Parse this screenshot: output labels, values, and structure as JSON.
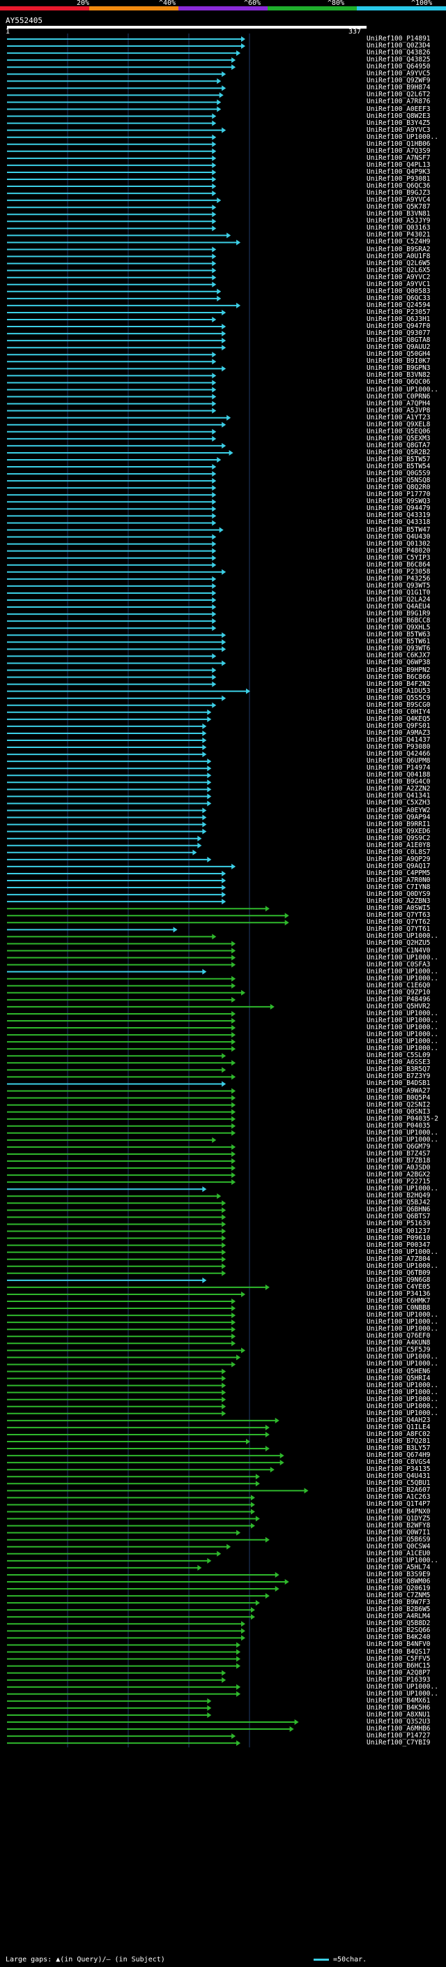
{
  "scale": {
    "labels": [
      "20%",
      "^40%",
      "^60%",
      "^80%",
      "^100%"
    ],
    "colors": [
      "#e8192c",
      "#f08a10",
      "#8a2bd8",
      "#1fae2c",
      "#28c8e8"
    ]
  },
  "query": {
    "name": "AY552405",
    "start": "1",
    "end": "337"
  },
  "legend": {
    "gaps": "Large gaps: ▲(in Query)/— (in Subject)",
    "scale": "=50char."
  },
  "colors": {
    "cyan": "#3ccfe6",
    "green": "#2fb82c",
    "grid": "#1f3a6a"
  },
  "hits": [
    {
      "id": "UniRef100_P14891",
      "end": 0.98,
      "c": "c"
    },
    {
      "id": "UniRef100_Q0Z3D4",
      "end": 0.98,
      "c": "c"
    },
    {
      "id": "UniRef100_Q43826",
      "end": 0.96,
      "c": "c"
    },
    {
      "id": "UniRef100_Q43825",
      "end": 0.94,
      "c": "c"
    },
    {
      "id": "UniRef100_Q64950",
      "end": 0.94,
      "c": "c"
    },
    {
      "id": "UniRef100_A9YVC5",
      "end": 0.9,
      "c": "c"
    },
    {
      "id": "UniRef100_Q9ZWF9",
      "end": 0.88,
      "c": "c"
    },
    {
      "id": "UniRef100_B9H874",
      "end": 0.9,
      "c": "c"
    },
    {
      "id": "UniRef100_Q2L6T2",
      "end": 0.89,
      "c": "c"
    },
    {
      "id": "UniRef100_A7R876",
      "end": 0.88,
      "c": "c"
    },
    {
      "id": "UniRef100_A0EEF3",
      "end": 0.88,
      "c": "c"
    },
    {
      "id": "UniRef100_Q8W2E3",
      "end": 0.86,
      "c": "c"
    },
    {
      "id": "UniRef100_B3Y4Z5",
      "end": 0.86,
      "c": "c"
    },
    {
      "id": "UniRef100_A9YVC3",
      "end": 0.9,
      "c": "c"
    },
    {
      "id": "UniRef100_UP1000..",
      "end": 0.86,
      "c": "c"
    },
    {
      "id": "UniRef100_Q1HB06",
      "end": 0.86,
      "c": "c"
    },
    {
      "id": "UniRef100_A7Q3S9",
      "end": 0.86,
      "c": "c"
    },
    {
      "id": "UniRef100_A7NSF7",
      "end": 0.86,
      "c": "c"
    },
    {
      "id": "UniRef100_Q4PL13",
      "end": 0.86,
      "c": "c"
    },
    {
      "id": "UniRef100_Q4P9K3",
      "end": 0.86,
      "c": "c"
    },
    {
      "id": "UniRef100_P93081",
      "end": 0.86,
      "c": "c"
    },
    {
      "id": "UniRef100_Q6QC36",
      "end": 0.86,
      "c": "c"
    },
    {
      "id": "UniRef100_B9GJZ3",
      "end": 0.86,
      "c": "c"
    },
    {
      "id": "UniRef100_A9YVC4",
      "end": 0.88,
      "c": "c"
    },
    {
      "id": "UniRef100_Q5K787",
      "end": 0.86,
      "c": "c"
    },
    {
      "id": "UniRef100_B3VN81",
      "end": 0.86,
      "c": "c"
    },
    {
      "id": "UniRef100_A5JJY9",
      "end": 0.86,
      "c": "c"
    },
    {
      "id": "UniRef100_Q03163",
      "end": 0.86,
      "c": "c"
    },
    {
      "id": "UniRef100_P43021",
      "end": 0.92,
      "c": "c"
    },
    {
      "id": "UniRef100_C5Z4H9",
      "end": 0.96,
      "c": "c"
    },
    {
      "id": "UniRef100_B9SRA2",
      "end": 0.86,
      "c": "c"
    },
    {
      "id": "UniRef100_A0U1F8",
      "end": 0.86,
      "c": "c"
    },
    {
      "id": "UniRef100_Q2L6W5",
      "end": 0.86,
      "c": "c"
    },
    {
      "id": "UniRef100_Q2L6X5",
      "end": 0.86,
      "c": "c"
    },
    {
      "id": "UniRef100_A9YVC2",
      "end": 0.86,
      "c": "c"
    },
    {
      "id": "UniRef100_A9YVC1",
      "end": 0.86,
      "c": "c"
    },
    {
      "id": "UniRef100_Q00583",
      "end": 0.88,
      "c": "c"
    },
    {
      "id": "UniRef100_Q6QC33",
      "end": 0.88,
      "c": "c"
    },
    {
      "id": "UniRef100_Q24594",
      "end": 0.96,
      "c": "c"
    },
    {
      "id": "UniRef100_P23057",
      "end": 0.9,
      "c": "c"
    },
    {
      "id": "UniRef100_Q6J3H1",
      "end": 0.86,
      "c": "c"
    },
    {
      "id": "UniRef100_Q947F0",
      "end": 0.9,
      "c": "c"
    },
    {
      "id": "UniRef100_Q93077",
      "end": 0.9,
      "c": "c"
    },
    {
      "id": "UniRef100_Q8GTA8",
      "end": 0.9,
      "c": "c"
    },
    {
      "id": "UniRef100_Q9AUU2",
      "end": 0.9,
      "c": "c"
    },
    {
      "id": "UniRef100_Q50GH4",
      "end": 0.86,
      "c": "c"
    },
    {
      "id": "UniRef100_B9I0K7",
      "end": 0.86,
      "c": "c"
    },
    {
      "id": "UniRef100_B9GPN3",
      "end": 0.9,
      "c": "c"
    },
    {
      "id": "UniRef100_B3VN82",
      "end": 0.86,
      "c": "c"
    },
    {
      "id": "UniRef100_Q6QC06",
      "end": 0.86,
      "c": "c"
    },
    {
      "id": "UniRef100_UP1000..",
      "end": 0.86,
      "c": "c"
    },
    {
      "id": "UniRef100_C0PRN6",
      "end": 0.86,
      "c": "c"
    },
    {
      "id": "UniRef100_A7QPH4",
      "end": 0.86,
      "c": "c"
    },
    {
      "id": "UniRef100_A5JVP8",
      "end": 0.86,
      "c": "c"
    },
    {
      "id": "UniRef100_A1YT23",
      "end": 0.92,
      "c": "c"
    },
    {
      "id": "UniRef100_Q9XEL8",
      "end": 0.9,
      "c": "c"
    },
    {
      "id": "UniRef100_Q5EQ06",
      "end": 0.86,
      "c": "c"
    },
    {
      "id": "UniRef100_Q5EXM3",
      "end": 0.86,
      "c": "c"
    },
    {
      "id": "UniRef100_Q8GTA7",
      "end": 0.9,
      "c": "c"
    },
    {
      "id": "UniRef100_Q5R2B2",
      "end": 0.93,
      "c": "c"
    },
    {
      "id": "UniRef100_B5TW57",
      "end": 0.88,
      "c": "c"
    },
    {
      "id": "UniRef100_B5TW54",
      "end": 0.86,
      "c": "c"
    },
    {
      "id": "UniRef100_Q0G5S9",
      "end": 0.86,
      "c": "c"
    },
    {
      "id": "UniRef100_Q5NSQ8",
      "end": 0.86,
      "c": "c"
    },
    {
      "id": "UniRef100_Q8Q2R0",
      "end": 0.86,
      "c": "c"
    },
    {
      "id": "UniRef100_P17770",
      "end": 0.86,
      "c": "c"
    },
    {
      "id": "UniRef100_Q9SWQ3",
      "end": 0.86,
      "c": "c"
    },
    {
      "id": "UniRef100_Q94479",
      "end": 0.86,
      "c": "c"
    },
    {
      "id": "UniRef100_Q43319",
      "end": 0.86,
      "c": "c"
    },
    {
      "id": "UniRef100_Q43318",
      "end": 0.86,
      "c": "c"
    },
    {
      "id": "UniRef100_B5TW47",
      "end": 0.89,
      "c": "c"
    },
    {
      "id": "UniRef100_Q4U430",
      "end": 0.86,
      "c": "c"
    },
    {
      "id": "UniRef100_Q01302",
      "end": 0.86,
      "c": "c"
    },
    {
      "id": "UniRef100_P48020",
      "end": 0.86,
      "c": "c"
    },
    {
      "id": "UniRef100_C5YIP3",
      "end": 0.86,
      "c": "c"
    },
    {
      "id": "UniRef100_B6C864",
      "end": 0.86,
      "c": "c"
    },
    {
      "id": "UniRef100_P23058",
      "end": 0.9,
      "c": "c"
    },
    {
      "id": "UniRef100_P43256",
      "end": 0.86,
      "c": "c"
    },
    {
      "id": "UniRef100_Q93WT5",
      "end": 0.86,
      "c": "c"
    },
    {
      "id": "UniRef100_Q1G1T0",
      "end": 0.86,
      "c": "c"
    },
    {
      "id": "UniRef100_Q2LA24",
      "end": 0.86,
      "c": "c"
    },
    {
      "id": "UniRef100_Q4AEU4",
      "end": 0.86,
      "c": "c"
    },
    {
      "id": "UniRef100_B9G1R9",
      "end": 0.86,
      "c": "c"
    },
    {
      "id": "UniRef100_B6BCC8",
      "end": 0.86,
      "c": "c"
    },
    {
      "id": "UniRef100_Q9XHL5",
      "end": 0.86,
      "c": "c"
    },
    {
      "id": "UniRef100_B5TW63",
      "end": 0.9,
      "c": "c"
    },
    {
      "id": "UniRef100_B5TW61",
      "end": 0.9,
      "c": "c"
    },
    {
      "id": "UniRef100_Q93WT6",
      "end": 0.9,
      "c": "c"
    },
    {
      "id": "UniRef100_C6KJX7",
      "end": 0.86,
      "c": "c"
    },
    {
      "id": "UniRef100_Q6WP38",
      "end": 0.9,
      "c": "c"
    },
    {
      "id": "UniRef100_B9HPN2",
      "end": 0.86,
      "c": "c"
    },
    {
      "id": "UniRef100_B6C866",
      "end": 0.86,
      "c": "c"
    },
    {
      "id": "UniRef100_B4F2N2",
      "end": 0.86,
      "c": "c"
    },
    {
      "id": "UniRef100_A1DU53",
      "end": 1.0,
      "c": "c"
    },
    {
      "id": "UniRef100_Q5S5C9",
      "end": 0.9,
      "c": "c"
    },
    {
      "id": "UniRef100_B9SCG0",
      "end": 0.86,
      "c": "c"
    },
    {
      "id": "UniRef100_C0HIY4",
      "end": 0.84,
      "c": "c"
    },
    {
      "id": "UniRef100_Q4KEQ5",
      "end": 0.84,
      "c": "c"
    },
    {
      "id": "UniRef100_Q9FS01",
      "end": 0.82,
      "c": "c"
    },
    {
      "id": "UniRef100_A9MAZ3",
      "end": 0.82,
      "c": "c"
    },
    {
      "id": "UniRef100_Q41437",
      "end": 0.82,
      "c": "c"
    },
    {
      "id": "UniRef100_P93080",
      "end": 0.82,
      "c": "c"
    },
    {
      "id": "UniRef100_Q42466",
      "end": 0.82,
      "c": "c"
    },
    {
      "id": "UniRef100_Q6UPM8",
      "end": 0.84,
      "c": "c"
    },
    {
      "id": "UniRef100_P14974",
      "end": 0.84,
      "c": "c"
    },
    {
      "id": "UniRef100_Q04188",
      "end": 0.84,
      "c": "c"
    },
    {
      "id": "UniRef100_B9G4C0",
      "end": 0.84,
      "c": "c"
    },
    {
      "id": "UniRef100_A2ZZN2",
      "end": 0.84,
      "c": "c"
    },
    {
      "id": "UniRef100_Q41341",
      "end": 0.84,
      "c": "c"
    },
    {
      "id": "UniRef100_C5XZH3",
      "end": 0.84,
      "c": "c"
    },
    {
      "id": "UniRef100_A0EYW2",
      "end": 0.82,
      "c": "c"
    },
    {
      "id": "UniRef100_Q9AP94",
      "end": 0.82,
      "c": "c"
    },
    {
      "id": "UniRef100_B9RRI1",
      "end": 0.82,
      "c": "c"
    },
    {
      "id": "UniRef100_Q9XED6",
      "end": 0.82,
      "c": "c"
    },
    {
      "id": "UniRef100_Q9S9C2",
      "end": 0.8,
      "c": "c"
    },
    {
      "id": "UniRef100_A1E0Y8",
      "end": 0.8,
      "c": "c"
    },
    {
      "id": "UniRef100_C0L8S7",
      "end": 0.78,
      "c": "c"
    },
    {
      "id": "UniRef100_A9QP29",
      "end": 0.84,
      "c": "c"
    },
    {
      "id": "UniRef100_Q9AQ17",
      "end": 0.94,
      "c": "c"
    },
    {
      "id": "UniRef100_C4PPM5",
      "end": 0.9,
      "c": "c"
    },
    {
      "id": "UniRef100_A7R0N0",
      "end": 0.9,
      "c": "c"
    },
    {
      "id": "UniRef100_C7IYN8",
      "end": 0.9,
      "c": "c"
    },
    {
      "id": "UniRef100_Q0DYS9",
      "end": 0.9,
      "c": "c"
    },
    {
      "id": "UniRef100_A2ZBN3",
      "end": 0.9,
      "c": "c"
    },
    {
      "id": "UniRef100_A0SWI5",
      "end": 1.08,
      "c": "g"
    },
    {
      "id": "UniRef100_Q7YT63",
      "end": 1.16,
      "c": "g"
    },
    {
      "id": "UniRef100_Q7YT62",
      "end": 1.16,
      "c": "g"
    },
    {
      "id": "UniRef100_Q7YT61",
      "end": 0.7,
      "c": "c"
    },
    {
      "id": "UniRef100_UP1000..",
      "end": 0.86,
      "c": "g"
    },
    {
      "id": "UniRef100_Q2HZU5",
      "end": 0.94,
      "c": "g"
    },
    {
      "id": "UniRef100_C1N4V0",
      "end": 0.94,
      "c": "g"
    },
    {
      "id": "UniRef100_UP1000..",
      "end": 0.94,
      "c": "g"
    },
    {
      "id": "UniRef100_C0SFA3",
      "end": 0.94,
      "c": "g"
    },
    {
      "id": "UniRef100_UP1000..",
      "end": 0.82,
      "c": "c"
    },
    {
      "id": "UniRef100_UP1000..",
      "end": 0.94,
      "c": "g"
    },
    {
      "id": "UniRef100_C1E6Q0",
      "end": 0.94,
      "c": "g"
    },
    {
      "id": "UniRef100_Q9ZP10",
      "end": 0.98,
      "c": "g"
    },
    {
      "id": "UniRef100_P48496",
      "end": 0.94,
      "c": "g"
    },
    {
      "id": "UniRef100_Q5HVR2",
      "end": 1.1,
      "c": "g"
    },
    {
      "id": "UniRef100_UP1000..",
      "end": 0.94,
      "c": "g"
    },
    {
      "id": "UniRef100_UP1000..",
      "end": 0.94,
      "c": "g"
    },
    {
      "id": "UniRef100_UP1000..",
      "end": 0.94,
      "c": "g"
    },
    {
      "id": "UniRef100_UP1000..",
      "end": 0.94,
      "c": "g"
    },
    {
      "id": "UniRef100_UP1000..",
      "end": 0.94,
      "c": "g"
    },
    {
      "id": "UniRef100_UP1000..",
      "end": 0.94,
      "c": "g"
    },
    {
      "id": "UniRef100_C5SL09",
      "end": 0.9,
      "c": "g"
    },
    {
      "id": "UniRef100_A6SSE3",
      "end": 0.94,
      "c": "g"
    },
    {
      "id": "UniRef100_B3R5Q7",
      "end": 0.9,
      "c": "g"
    },
    {
      "id": "UniRef100_B7Z3Y9",
      "end": 0.94,
      "c": "g"
    },
    {
      "id": "UniRef100_B4DSB1",
      "end": 0.9,
      "c": "c"
    },
    {
      "id": "UniRef100_A9WA27",
      "end": 0.94,
      "c": "g"
    },
    {
      "id": "UniRef100_B0Q5P4",
      "end": 0.94,
      "c": "g"
    },
    {
      "id": "UniRef100_Q2SNI2",
      "end": 0.94,
      "c": "g"
    },
    {
      "id": "UniRef100_Q0SNI3",
      "end": 0.94,
      "c": "g"
    },
    {
      "id": "UniRef100_P04035-2",
      "end": 0.94,
      "c": "g"
    },
    {
      "id": "UniRef100_P04035",
      "end": 0.94,
      "c": "g"
    },
    {
      "id": "UniRef100_UP1000..",
      "end": 0.94,
      "c": "g"
    },
    {
      "id": "UniRef100_UP1000..",
      "end": 0.86,
      "c": "g"
    },
    {
      "id": "UniRef100_Q6GM79",
      "end": 0.94,
      "c": "g"
    },
    {
      "id": "UniRef100_B7Z4S7",
      "end": 0.94,
      "c": "g"
    },
    {
      "id": "UniRef100_B7ZB18",
      "end": 0.94,
      "c": "g"
    },
    {
      "id": "UniRef100_A0JSD0",
      "end": 0.94,
      "c": "g"
    },
    {
      "id": "UniRef100_A2BGX2",
      "end": 0.94,
      "c": "g"
    },
    {
      "id": "UniRef100_P22715",
      "end": 0.94,
      "c": "g"
    },
    {
      "id": "UniRef100_UP1000..",
      "end": 0.82,
      "c": "c"
    },
    {
      "id": "UniRef100_B2HQ49",
      "end": 0.88,
      "c": "g"
    },
    {
      "id": "UniRef100_Q5BJ42",
      "end": 0.9,
      "c": "g"
    },
    {
      "id": "UniRef100_Q6BHN6",
      "end": 0.9,
      "c": "g"
    },
    {
      "id": "UniRef100_Q6BTS7",
      "end": 0.9,
      "c": "g"
    },
    {
      "id": "UniRef100_P51639",
      "end": 0.9,
      "c": "g"
    },
    {
      "id": "UniRef100_Q01237",
      "end": 0.9,
      "c": "g"
    },
    {
      "id": "UniRef100_P09610",
      "end": 0.9,
      "c": "g"
    },
    {
      "id": "UniRef100_P00347",
      "end": 0.9,
      "c": "g"
    },
    {
      "id": "UniRef100_UP1000..",
      "end": 0.9,
      "c": "g"
    },
    {
      "id": "UniRef100_A7Z804",
      "end": 0.9,
      "c": "g"
    },
    {
      "id": "UniRef100_UP1000..",
      "end": 0.9,
      "c": "g"
    },
    {
      "id": "UniRef100_Q6TB09",
      "end": 0.9,
      "c": "g"
    },
    {
      "id": "UniRef100_Q9N6G8",
      "end": 0.82,
      "c": "c"
    },
    {
      "id": "UniRef100_C4YE05",
      "end": 1.08,
      "c": "g"
    },
    {
      "id": "UniRef100_P34136",
      "end": 0.98,
      "c": "g"
    },
    {
      "id": "UniRef100_C6HMK7",
      "end": 0.94,
      "c": "g"
    },
    {
      "id": "UniRef100_C0NBB8",
      "end": 0.94,
      "c": "g"
    },
    {
      "id": "UniRef100_UP1000..",
      "end": 0.94,
      "c": "g"
    },
    {
      "id": "UniRef100_UP1000..",
      "end": 0.94,
      "c": "g"
    },
    {
      "id": "UniRef100_UP1000..",
      "end": 0.94,
      "c": "g"
    },
    {
      "id": "UniRef100_Q76EF0",
      "end": 0.94,
      "c": "g"
    },
    {
      "id": "UniRef100_A4KUN8",
      "end": 0.94,
      "c": "g"
    },
    {
      "id": "UniRef100_C5F5J9",
      "end": 0.98,
      "c": "g"
    },
    {
      "id": "UniRef100_UP1000..",
      "end": 0.96,
      "c": "g"
    },
    {
      "id": "UniRef100_UP1000..",
      "end": 0.94,
      "c": "g"
    },
    {
      "id": "UniRef100_Q5HEN6",
      "end": 0.9,
      "c": "g"
    },
    {
      "id": "UniRef100_Q5HRI4",
      "end": 0.9,
      "c": "g"
    },
    {
      "id": "UniRef100_UP1000..",
      "end": 0.9,
      "c": "g"
    },
    {
      "id": "UniRef100_UP1000..",
      "end": 0.9,
      "c": "g"
    },
    {
      "id": "UniRef100_UP1000..",
      "end": 0.9,
      "c": "g"
    },
    {
      "id": "UniRef100_UP1000..",
      "end": 0.9,
      "c": "g"
    },
    {
      "id": "UniRef100_UP1000..",
      "end": 0.9,
      "c": "g"
    },
    {
      "id": "UniRef100_Q4AH23",
      "end": 1.12,
      "c": "g"
    },
    {
      "id": "UniRef100_Q1ILE4",
      "end": 1.08,
      "c": "g"
    },
    {
      "id": "UniRef100_A8FC02",
      "end": 1.08,
      "c": "g"
    },
    {
      "id": "UniRef100_B7Q281",
      "end": 1.0,
      "c": "g"
    },
    {
      "id": "UniRef100_B3LY57",
      "end": 1.08,
      "c": "g"
    },
    {
      "id": "UniRef100_Q674H9",
      "end": 1.14,
      "c": "g"
    },
    {
      "id": "UniRef100_C8VGS4",
      "end": 1.14,
      "c": "g"
    },
    {
      "id": "UniRef100_P34135",
      "end": 1.1,
      "c": "g"
    },
    {
      "id": "UniRef100_Q4U431",
      "end": 1.04,
      "c": "g"
    },
    {
      "id": "UniRef100_C5QBU1",
      "end": 1.04,
      "c": "g"
    },
    {
      "id": "UniRef100_B2A607",
      "end": 1.24,
      "c": "g"
    },
    {
      "id": "UniRef100_A1C263",
      "end": 1.02,
      "c": "g"
    },
    {
      "id": "UniRef100_Q1T4P7",
      "end": 1.02,
      "c": "g"
    },
    {
      "id": "UniRef100_B4PNX0",
      "end": 1.02,
      "c": "g"
    },
    {
      "id": "UniRef100_Q1DYZ5",
      "end": 1.04,
      "c": "g"
    },
    {
      "id": "UniRef100_B2WFY8",
      "end": 1.02,
      "c": "g"
    },
    {
      "id": "UniRef100_Q0W7I1",
      "end": 0.96,
      "c": "g"
    },
    {
      "id": "UniRef100_Q5B6S9",
      "end": 1.08,
      "c": "g"
    },
    {
      "id": "UniRef100_Q0CSW4",
      "end": 0.92,
      "c": "g"
    },
    {
      "id": "UniRef100_A1CEU0",
      "end": 0.88,
      "c": "g"
    },
    {
      "id": "UniRef100_UP1000..",
      "end": 0.84,
      "c": "g"
    },
    {
      "id": "UniRef100_A5HL74",
      "end": 0.8,
      "c": "g"
    },
    {
      "id": "UniRef100_B3S9E9",
      "end": 1.12,
      "c": "g"
    },
    {
      "id": "UniRef100_Q8WM06",
      "end": 1.16,
      "c": "g"
    },
    {
      "id": "UniRef100_Q20619",
      "end": 1.12,
      "c": "g"
    },
    {
      "id": "UniRef100_C7ZNM5",
      "end": 1.08,
      "c": "g"
    },
    {
      "id": "UniRef100_B9W7F3",
      "end": 1.04,
      "c": "g"
    },
    {
      "id": "UniRef100_B2B6W5",
      "end": 1.02,
      "c": "g"
    },
    {
      "id": "UniRef100_A4RLM4",
      "end": 1.02,
      "c": "g"
    },
    {
      "id": "UniRef100_Q5B8D2",
      "end": 0.98,
      "c": "g"
    },
    {
      "id": "UniRef100_B2SQ66",
      "end": 0.98,
      "c": "g"
    },
    {
      "id": "UniRef100_B4K240",
      "end": 0.98,
      "c": "g"
    },
    {
      "id": "UniRef100_B4NFV0",
      "end": 0.96,
      "c": "g"
    },
    {
      "id": "UniRef100_B4QS17",
      "end": 0.96,
      "c": "g"
    },
    {
      "id": "UniRef100_C5FFV5",
      "end": 0.96,
      "c": "g"
    },
    {
      "id": "UniRef100_B6HC15",
      "end": 0.96,
      "c": "g"
    },
    {
      "id": "UniRef100_A2Q8P7",
      "end": 0.9,
      "c": "g"
    },
    {
      "id": "UniRef100_P16393",
      "end": 0.9,
      "c": "g"
    },
    {
      "id": "UniRef100_UP1000..",
      "end": 0.96,
      "c": "g"
    },
    {
      "id": "UniRef100_UP1000..",
      "end": 0.96,
      "c": "g"
    },
    {
      "id": "UniRef100_B4MX61",
      "end": 0.84,
      "c": "g"
    },
    {
      "id": "UniRef100_B4K5H6",
      "end": 0.84,
      "c": "g"
    },
    {
      "id": "UniRef100_A8XNU1",
      "end": 0.84,
      "c": "g"
    },
    {
      "id": "UniRef100_Q3S2U3",
      "end": 1.2,
      "c": "g"
    },
    {
      "id": "UniRef100_A6MHB6",
      "end": 1.18,
      "c": "g"
    },
    {
      "id": "UniRef100_P14727",
      "end": 0.94,
      "c": "g"
    },
    {
      "id": "UniRef100_C7YBI9",
      "end": 0.96,
      "c": "g"
    }
  ]
}
